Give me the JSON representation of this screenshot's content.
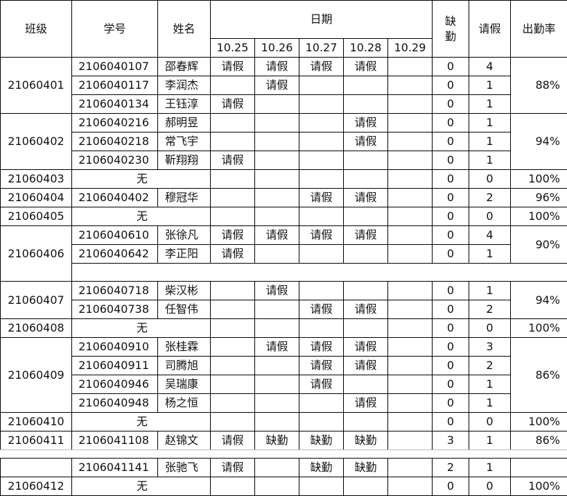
{
  "header": {
    "class": "班级",
    "student_id": "学号",
    "name": "姓名",
    "date_group": "日期",
    "dates": [
      "10.25",
      "10.26",
      "10.27",
      "10.28",
      "10.29"
    ],
    "absent": "缺勤",
    "leave": "请假",
    "rate": "出勤率"
  },
  "groups": [
    {
      "class": "21060401",
      "rate": "88%",
      "students": [
        {
          "id": "2106040107",
          "name": "邵春辉",
          "marks": [
            "请假",
            "请假",
            "请假",
            "请假",
            null
          ],
          "absent": 0,
          "leave": 4
        },
        {
          "id": "2106040117",
          "name": "李润杰",
          "marks": [
            null,
            "请假",
            null,
            null,
            null
          ],
          "absent": 0,
          "leave": 1
        },
        {
          "id": "2106040134",
          "name": "王钰淳",
          "marks": [
            "请假",
            null,
            null,
            null,
            null
          ],
          "absent": 0,
          "leave": 1
        }
      ]
    },
    {
      "class": "21060402",
      "rate": "94%",
      "students": [
        {
          "id": "2106040216",
          "name": "郝明昱",
          "marks": [
            null,
            null,
            null,
            "请假",
            null
          ],
          "absent": 0,
          "leave": 1
        },
        {
          "id": "2106040218",
          "name": "常飞宇",
          "marks": [
            null,
            null,
            null,
            "请假",
            null
          ],
          "absent": 0,
          "leave": 1
        },
        {
          "id": "2106040230",
          "name": "靳翔翔",
          "marks": [
            "请假",
            null,
            null,
            null,
            null
          ],
          "absent": 0,
          "leave": 1
        }
      ]
    },
    {
      "class": "21060403",
      "rate": "100%",
      "students": [
        {
          "none": "无",
          "marks": [
            null,
            null,
            null,
            null,
            null
          ],
          "absent": 0,
          "leave": 0
        }
      ]
    },
    {
      "class": "21060404",
      "rate": "96%",
      "students": [
        {
          "id": "2106040402",
          "name": "穆冠华",
          "marks": [
            null,
            null,
            "请假",
            "请假",
            null
          ],
          "absent": 0,
          "leave": 2
        }
      ]
    },
    {
      "class": "21060405",
      "rate": "100%",
      "students": [
        {
          "none": "无",
          "marks": [
            null,
            null,
            null,
            null,
            null
          ],
          "absent": 0,
          "leave": 0
        }
      ]
    },
    {
      "class": "21060406",
      "rate": "90%",
      "students": [
        {
          "id": "2106040610",
          "name": "张徐凡",
          "marks": [
            "请假",
            "请假",
            "请假",
            "请假",
            null
          ],
          "absent": 0,
          "leave": 4
        },
        {
          "id": "2106040642",
          "name": "李正阳",
          "marks": [
            "请假",
            null,
            null,
            null,
            null
          ],
          "absent": 0,
          "leave": 1
        }
      ]
    },
    {
      "class": "21060407",
      "rate": "94%",
      "students": [
        {
          "id": "2106040718",
          "name": "柴汉彬",
          "marks": [
            null,
            "请假",
            null,
            null,
            null
          ],
          "absent": 0,
          "leave": 1
        },
        {
          "id": "2106040738",
          "name": "任智伟",
          "marks": [
            null,
            null,
            "请假",
            "请假",
            null
          ],
          "absent": 0,
          "leave": 2
        }
      ]
    },
    {
      "class": "21060408",
      "rate": "100%",
      "students": [
        {
          "none": "无",
          "marks": [
            null,
            null,
            null,
            null,
            null
          ],
          "absent": 0,
          "leave": 0
        }
      ]
    },
    {
      "class": "21060409",
      "rate": "86%",
      "students": [
        {
          "id": "2106040910",
          "name": "张桂霖",
          "marks": [
            null,
            "请假",
            "请假",
            "请假",
            null
          ],
          "absent": 0,
          "leave": 3
        },
        {
          "id": "2106040911",
          "name": "司腾旭",
          "marks": [
            null,
            null,
            "请假",
            "请假",
            null
          ],
          "absent": 0,
          "leave": 2
        },
        {
          "id": "2106040946",
          "name": "吴瑞康",
          "marks": [
            null,
            null,
            "请假",
            null,
            null
          ],
          "absent": 0,
          "leave": 1
        },
        {
          "id": "2106040948",
          "name": "杨之恒",
          "marks": [
            null,
            null,
            null,
            "请假",
            null
          ],
          "absent": 0,
          "leave": 1
        }
      ]
    },
    {
      "class": "21060410",
      "rate": "100%",
      "students": [
        {
          "none": "无",
          "marks": [
            null,
            null,
            null,
            null,
            null
          ],
          "absent": 0,
          "leave": 0
        }
      ]
    },
    {
      "class": "21060411",
      "rate": "86%",
      "students": [
        {
          "id": "2106041108",
          "name": "赵锦文",
          "marks": [
            "请假",
            "缺勤",
            "缺勤",
            "缺勤",
            null
          ],
          "absent": 3,
          "leave": 1
        }
      ]
    },
    {
      "students": [
        {
          "id": "2106041141",
          "name": "张驰飞",
          "marks": [
            "请假",
            null,
            "缺勤",
            "缺勤",
            null
          ],
          "absent": 2,
          "leave": 1
        }
      ]
    },
    {
      "class": "21060412",
      "rate": "100%",
      "students": [
        {
          "none": "无",
          "marks": [
            null,
            null,
            null,
            null,
            null
          ],
          "absent": 0,
          "leave": 0
        }
      ]
    }
  ]
}
